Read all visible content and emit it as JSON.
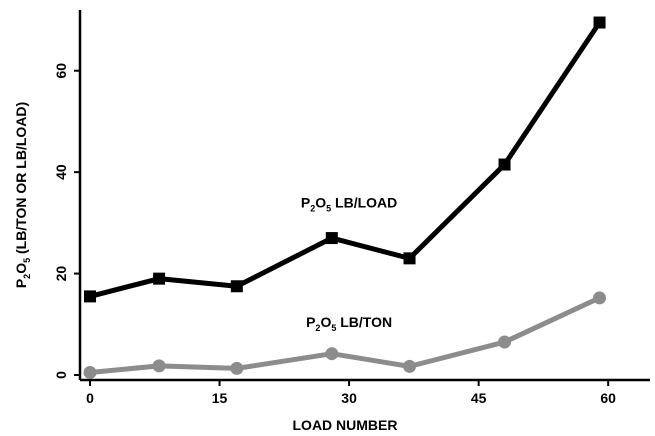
{
  "chart_data": {
    "type": "line",
    "xlabel": "LOAD NUMBER",
    "ylabel": {
      "prefix": "P",
      "sub1": "2",
      "mid": "O",
      "sub2": "5",
      "suffix": " (LB/TON OR LB/LOAD)"
    },
    "xlim": [
      0,
      66
    ],
    "ylim": [
      0,
      70
    ],
    "xticks": [
      0,
      15,
      30,
      45,
      60
    ],
    "yticks": [
      0,
      20,
      40,
      60
    ],
    "grid": false,
    "series": [
      {
        "name": "P2O5 LB/LOAD",
        "label_parts": {
          "prefix": "P",
          "sub1": "2",
          "mid": "O",
          "sub2": "5",
          "suffix": " LB/LOAD"
        },
        "label_at": [
          30,
          33
        ],
        "color": "#000000",
        "marker": "square",
        "x": [
          0,
          8,
          17,
          28,
          37,
          48,
          59
        ],
        "y": [
          15.5,
          19,
          17.5,
          27,
          23,
          41.5,
          69.5
        ]
      },
      {
        "name": "P2O5 LB/TON",
        "label_parts": {
          "prefix": "P",
          "sub1": "2",
          "mid": "O",
          "sub2": "5",
          "suffix": " LB/TON"
        },
        "label_at": [
          30,
          9.5
        ],
        "color": "#8c8c8c",
        "marker": "circle",
        "x": [
          0,
          8,
          17,
          28,
          37,
          48,
          59
        ],
        "y": [
          0.5,
          1.8,
          1.3,
          4.2,
          1.7,
          6.5,
          15.2
        ]
      }
    ]
  }
}
